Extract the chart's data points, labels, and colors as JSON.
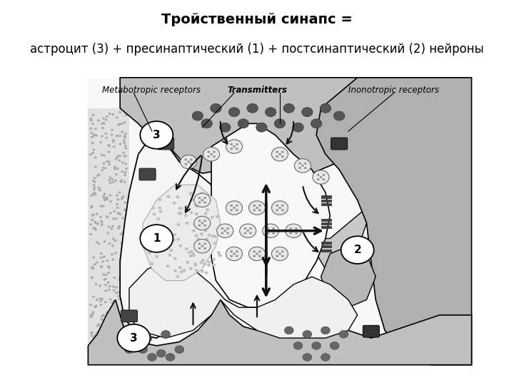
{
  "title_line1": "Тройственный синапс =",
  "title_line2": "астроцит (3) + пресинаптический (1) + постсинаптический (2) нейроны",
  "title_fontsize": 14,
  "subtitle_fontsize": 12,
  "bg_color": "#ffffff",
  "label_metabotropic": "Metabotropic receptors",
  "label_transmitters": "Transmitters",
  "label_ionotropic": "Inonotropic receptors",
  "astrocyte_gray": "#c0c0c0",
  "presynaptic_stipple": "#e8e8e8",
  "postsynaptic_gray": "#b0b0b0",
  "white_cell": "#f5f5f5",
  "dark_gray": "#888888"
}
